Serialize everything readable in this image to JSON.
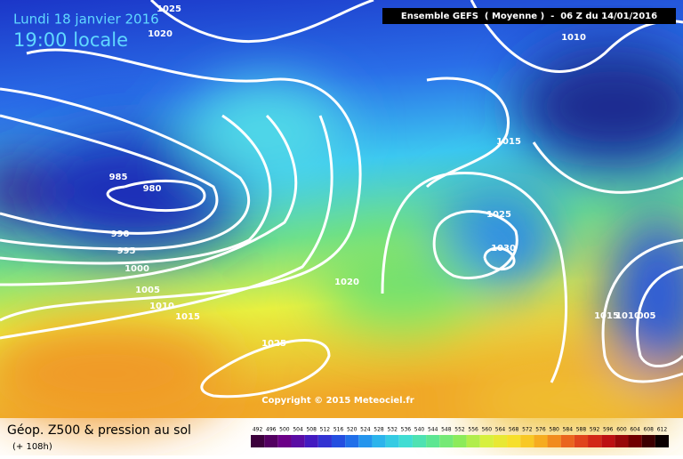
{
  "header": {
    "date": "Lundi 18 janvier 2016",
    "time": "19:00 locale",
    "run": "Ensemble GEFS  ( Moyenne )  -  06 Z du 14/01/2016"
  },
  "isobar_labels": [
    "1025",
    "1020",
    "1010",
    "985",
    "980",
    "990",
    "995",
    "1000",
    "1005",
    "1010",
    "1015",
    "1020",
    "1025",
    "1015",
    "1025",
    "1030",
    "1015",
    "1010",
    "005"
  ],
  "copyright": "Copyright © 2015 Meteociel.fr",
  "footer": {
    "title": "Géop. Z500 & pression au sol",
    "lead": "(+ 108h)"
  },
  "scale": {
    "labels": [
      "492",
      "496",
      "500",
      "504",
      "508",
      "512",
      "516",
      "520",
      "524",
      "528",
      "532",
      "536",
      "540",
      "544",
      "548",
      "552",
      "556",
      "560",
      "564",
      "568",
      "572",
      "576",
      "580",
      "584",
      "588",
      "592",
      "596",
      "600",
      "604",
      "608",
      "612"
    ]
  }
}
